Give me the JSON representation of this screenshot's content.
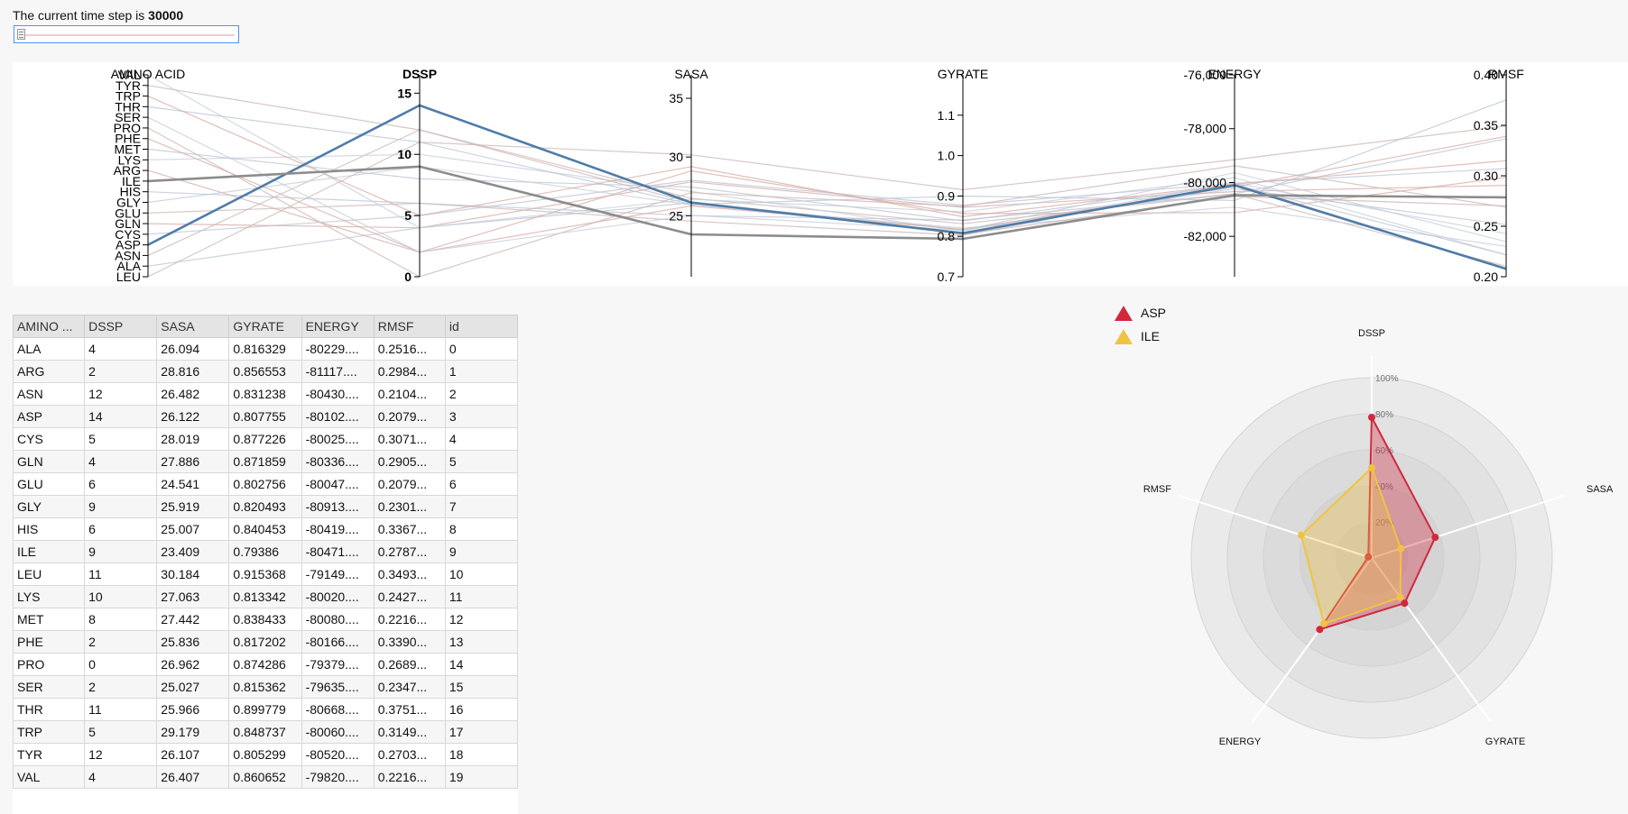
{
  "header": {
    "time_prefix": "The current time step is ",
    "time_value": "30000"
  },
  "slider": {
    "value_percent": 0
  },
  "parallel": {
    "axes": [
      {
        "key": "amino",
        "label": "AMINO ACID",
        "bold": false,
        "type": "cat",
        "cats": [
          "VAL",
          "TYR",
          "TRP",
          "THR",
          "SER",
          "PRO",
          "PHE",
          "MET",
          "LYS",
          "ARG",
          "ILE",
          "HIS",
          "GLY",
          "GLU",
          "GLN",
          "CYS",
          "ASP",
          "ASN",
          "ALA",
          "LEU"
        ],
        "label_side": "left"
      },
      {
        "key": "dssp",
        "label": "DSSP",
        "bold": true,
        "type": "num",
        "domain": [
          0,
          16.5
        ],
        "ticks": [
          0,
          5,
          10,
          15
        ],
        "tick_labels": [
          "0",
          "5",
          "10",
          "15"
        ],
        "label_side": "left"
      },
      {
        "key": "sasa",
        "label": "SASA",
        "bold": false,
        "type": "num",
        "domain": [
          19.8,
          37
        ],
        "ticks": [
          25,
          30,
          35
        ],
        "tick_labels": [
          "25",
          "30",
          "35"
        ],
        "label_side": "left"
      },
      {
        "key": "gyrate",
        "label": "GYRATE",
        "bold": false,
        "type": "num",
        "domain": [
          0.7,
          1.2
        ],
        "ticks": [
          0.7,
          0.8,
          0.9,
          1.0,
          1.1
        ],
        "tick_labels": [
          "0.7",
          "0.8",
          "0.9",
          "1.0",
          "1.1"
        ],
        "label_side": "left"
      },
      {
        "key": "energy",
        "label": "ENERGY",
        "bold": false,
        "type": "num",
        "domain": [
          -83500,
          -76000
        ],
        "ticks": [
          -82000,
          -80000,
          -78000,
          -76000
        ],
        "tick_labels": [
          "-82,000",
          "-80,000",
          "-78,000",
          "-76,000"
        ],
        "label_side": "left"
      },
      {
        "key": "rmsf",
        "label": "RMSF",
        "bold": false,
        "type": "num",
        "domain": [
          0.2,
          0.4
        ],
        "ticks": [
          0.2,
          0.25,
          0.3,
          0.35,
          0.4
        ],
        "tick_labels": [
          "0.20",
          "0.25",
          "0.30",
          "0.35",
          "0.40"
        ],
        "label_side": "left"
      }
    ],
    "highlight": [
      {
        "amino": "ASP",
        "dssp": 14,
        "sasa": 26.122,
        "gyrate": 0.807755,
        "energy": -80102,
        "rmsf": 0.2079,
        "color": "#4e7ca8"
      },
      {
        "amino": "ILE",
        "dssp": 9,
        "sasa": 23.409,
        "gyrate": 0.79386,
        "energy": -80471,
        "rmsf": 0.2787,
        "color": "#8c8c8c"
      }
    ],
    "faint_colors": [
      "#b9c3d3",
      "#d6aaa6",
      "#c9b4b2",
      "#c4ccd8"
    ]
  },
  "table": {
    "columns": [
      "AMINO ...",
      "DSSP",
      "SASA",
      "GYRATE",
      "ENERGY",
      "RMSF",
      "id"
    ],
    "rows": [
      [
        "ALA",
        "4",
        "26.094",
        "0.816329",
        "-80229....",
        "0.2516...",
        "0"
      ],
      [
        "ARG",
        "2",
        "28.816",
        "0.856553",
        "-81117....",
        "0.2984...",
        "1"
      ],
      [
        "ASN",
        "12",
        "26.482",
        "0.831238",
        "-80430....",
        "0.2104...",
        "2"
      ],
      [
        "ASP",
        "14",
        "26.122",
        "0.807755",
        "-80102....",
        "0.2079...",
        "3"
      ],
      [
        "CYS",
        "5",
        "28.019",
        "0.877226",
        "-80025....",
        "0.3071...",
        "4"
      ],
      [
        "GLN",
        "4",
        "27.886",
        "0.871859",
        "-80336....",
        "0.2905...",
        "5"
      ],
      [
        "GLU",
        "6",
        "24.541",
        "0.802756",
        "-80047....",
        "0.2079...",
        "6"
      ],
      [
        "GLY",
        "9",
        "25.919",
        "0.820493",
        "-80913....",
        "0.2301...",
        "7"
      ],
      [
        "HIS",
        "6",
        "25.007",
        "0.840453",
        "-80419....",
        "0.3367...",
        "8"
      ],
      [
        "ILE",
        "9",
        "23.409",
        "0.79386",
        "-80471....",
        "0.2787...",
        "9"
      ],
      [
        "LEU",
        "11",
        "30.184",
        "0.915368",
        "-79149....",
        "0.3493...",
        "10"
      ],
      [
        "LYS",
        "10",
        "27.063",
        "0.813342",
        "-80020....",
        "0.2427...",
        "11"
      ],
      [
        "MET",
        "8",
        "27.442",
        "0.838433",
        "-80080....",
        "0.2216...",
        "12"
      ],
      [
        "PHE",
        "2",
        "25.836",
        "0.817202",
        "-80166....",
        "0.3390...",
        "13"
      ],
      [
        "PRO",
        "0",
        "26.962",
        "0.874286",
        "-79379....",
        "0.2689...",
        "14"
      ],
      [
        "SER",
        "2",
        "25.027",
        "0.815362",
        "-79635....",
        "0.2347...",
        "15"
      ],
      [
        "THR",
        "11",
        "25.966",
        "0.899779",
        "-80668....",
        "0.3751...",
        "16"
      ],
      [
        "TRP",
        "5",
        "29.179",
        "0.848737",
        "-80060....",
        "0.3149...",
        "17"
      ],
      [
        "TYR",
        "12",
        "26.107",
        "0.805299",
        "-80520....",
        "0.2703...",
        "18"
      ],
      [
        "VAL",
        "4",
        "26.407",
        "0.860652",
        "-79820....",
        "0.2216...",
        "19"
      ]
    ]
  },
  "radar": {
    "axes": [
      "DSSP",
      "SASA",
      "GYRATE",
      "ENERGY",
      "RMSF"
    ],
    "levels": [
      "20%",
      "40%",
      "60%",
      "80%",
      "100%"
    ],
    "series": [
      {
        "name": "ASP",
        "color": "#d0293e",
        "values": [
          0.78,
          0.37,
          0.31,
          0.49,
          0.02
        ]
      },
      {
        "name": "ILE",
        "color": "#f0c442",
        "values": [
          0.5,
          0.17,
          0.27,
          0.45,
          0.41
        ]
      }
    ]
  }
}
